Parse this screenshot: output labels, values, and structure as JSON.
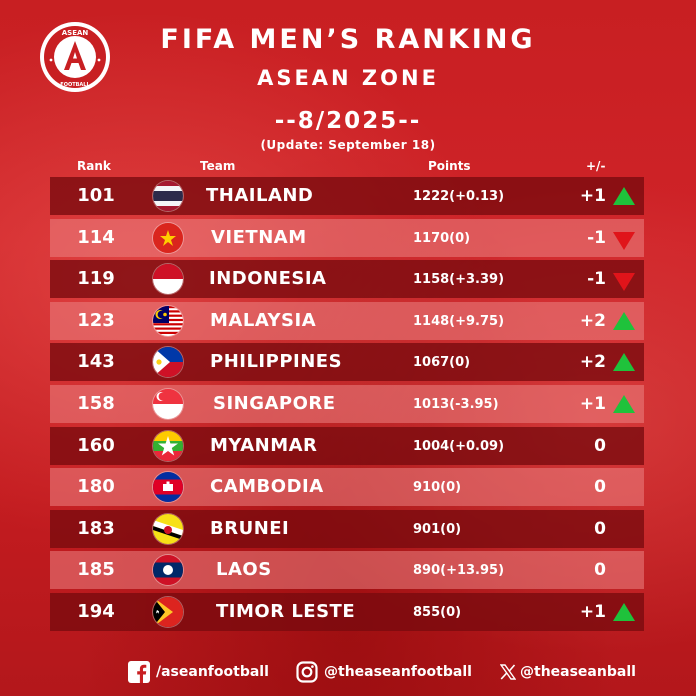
{
  "header": {
    "title": "FIFA MEN’S RANKING",
    "subtitle": "ASEAN ZONE",
    "period": "--8/2025--",
    "update": "(Update: September 18)"
  },
  "logo": {
    "text_top": "ASEAN",
    "text_bottom": "FOOTBALL",
    "letter": "A"
  },
  "columns": {
    "rank": "Rank",
    "team": "Team",
    "points": "Points",
    "change": "+/-"
  },
  "rows": [
    {
      "rank": "101",
      "team": "THAILAND",
      "points": "1222(+0.13)",
      "change": "+1",
      "trend": "up",
      "flag_icon": "thailand-flag-icon"
    },
    {
      "rank": "114",
      "team": "VIETNAM",
      "points": "1170(0)",
      "change": "-1",
      "trend": "down",
      "flag_icon": "vietnam-flag-icon"
    },
    {
      "rank": "119",
      "team": "INDONESIA",
      "points": "1158(+3.39)",
      "change": "-1",
      "trend": "down",
      "flag_icon": "indonesia-flag-icon"
    },
    {
      "rank": "123",
      "team": "MALAYSIA",
      "points": "1148(+9.75)",
      "change": "+2",
      "trend": "up",
      "flag_icon": "malaysia-flag-icon"
    },
    {
      "rank": "143",
      "team": "PHILIPPINES",
      "points": "1067(0)",
      "change": "+2",
      "trend": "up",
      "flag_icon": "philippines-flag-icon"
    },
    {
      "rank": "158",
      "team": "SINGAPORE",
      "points": "1013(-3.95)",
      "change": "+1",
      "trend": "up",
      "flag_icon": "singapore-flag-icon"
    },
    {
      "rank": "160",
      "team": "MYANMAR",
      "points": "1004(+0.09)",
      "change": "0",
      "trend": "none",
      "flag_icon": "myanmar-flag-icon"
    },
    {
      "rank": "180",
      "team": "CAMBODIA",
      "points": "910(0)",
      "change": "0",
      "trend": "none",
      "flag_icon": "cambodia-flag-icon"
    },
    {
      "rank": "183",
      "team": "BRUNEI",
      "points": "901(0)",
      "change": "0",
      "trend": "none",
      "flag_icon": "brunei-flag-icon"
    },
    {
      "rank": "185",
      "team": "LAOS",
      "points": "890(+13.95)",
      "change": "0",
      "trend": "none",
      "flag_icon": "laos-flag-icon"
    },
    {
      "rank": "194",
      "team": "TIMOR LESTE",
      "points": "855(0)",
      "change": "+1",
      "trend": "up",
      "flag_icon": "timor-leste-flag-icon"
    }
  ],
  "footer": {
    "facebook": "/aseanfootball",
    "instagram": "@theaseanfootball",
    "x": "@theaseanball"
  },
  "colors": {
    "background": "#c81f22",
    "row_dark": "#780a0e",
    "row_light": "#eb8282",
    "up_arrow": "#1fc23b",
    "down_arrow": "#e0141a"
  }
}
